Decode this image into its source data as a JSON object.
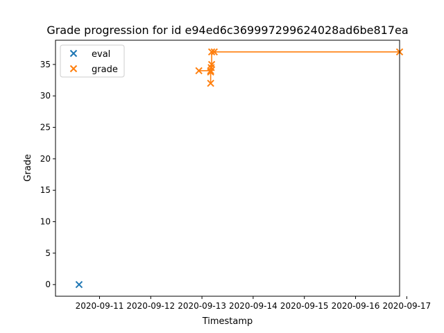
{
  "chart_data": {
    "type": "line",
    "title": "Grade progression for id e94ed6c369997299624028ad6be817ea",
    "xlabel": "Timestamp",
    "ylabel": "Grade",
    "x_is_time": true,
    "xlim_days": [
      -0.36,
      6.36
    ],
    "ylim": [
      -1.85,
      38.85
    ],
    "x_ticks": [
      {
        "value": 0.5,
        "label": "2020-09-11"
      },
      {
        "value": 1.5,
        "label": "2020-09-12"
      },
      {
        "value": 2.5,
        "label": "2020-09-13"
      },
      {
        "value": 3.5,
        "label": "2020-09-14"
      },
      {
        "value": 4.5,
        "label": "2020-09-15"
      },
      {
        "value": 5.5,
        "label": "2020-09-16"
      },
      {
        "value": 6.5,
        "label": "2020-09-17"
      }
    ],
    "y_ticks": [
      {
        "value": 0,
        "label": "0"
      },
      {
        "value": 5,
        "label": "5"
      },
      {
        "value": 10,
        "label": "10"
      },
      {
        "value": 15,
        "label": "15"
      },
      {
        "value": 20,
        "label": "20"
      },
      {
        "value": 25,
        "label": "25"
      },
      {
        "value": 30,
        "label": "30"
      },
      {
        "value": 35,
        "label": "35"
      }
    ],
    "series": [
      {
        "name": "eval",
        "color": "#1f77b4",
        "marker": "x",
        "line": false,
        "points": [
          {
            "x": 0.1,
            "y": 0
          }
        ]
      },
      {
        "name": "grade",
        "color": "#ff7f0e",
        "marker": "x",
        "line": true,
        "points": [
          {
            "x": 2.44,
            "y": 34
          },
          {
            "x": 2.67,
            "y": 34
          },
          {
            "x": 2.67,
            "y": 32
          },
          {
            "x": 2.67,
            "y": 33.8
          },
          {
            "x": 2.68,
            "y": 34.5
          },
          {
            "x": 2.69,
            "y": 35
          },
          {
            "x": 2.69,
            "y": 37
          },
          {
            "x": 2.74,
            "y": 37
          },
          {
            "x": 6.36,
            "y": 37
          }
        ]
      }
    ],
    "legend": {
      "position": "upper-left",
      "entries": [
        "eval",
        "grade"
      ]
    }
  }
}
